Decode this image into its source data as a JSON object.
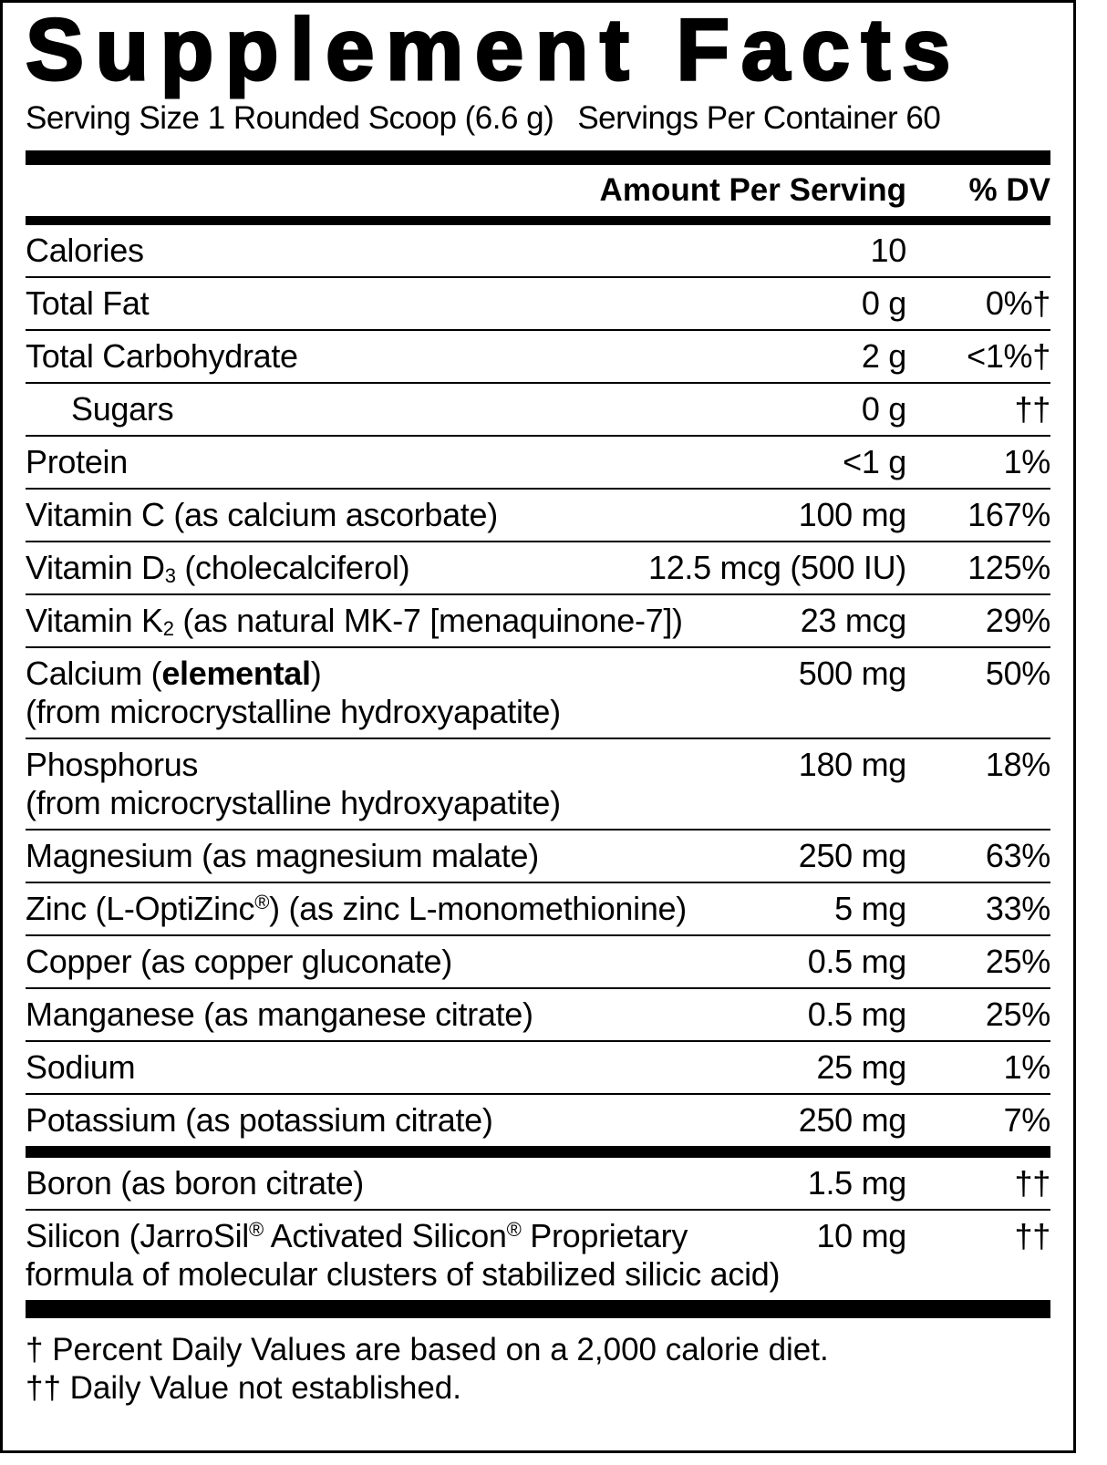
{
  "header": {
    "title": "Supplement Facts",
    "serving_size": "Serving Size 1 Rounded Scoop (6.6 g)",
    "servings_per_container": "Servings Per Container 60"
  },
  "columns": {
    "amount": "Amount Per Serving",
    "dv": "% DV"
  },
  "nutrients": [
    {
      "lines": [
        [
          "Calories"
        ]
      ],
      "amount": "10"
    },
    {
      "lines": [
        [
          "Total Fat"
        ]
      ],
      "amount": "0 g",
      "dv": "0%†"
    },
    {
      "lines": [
        [
          "Total Carbohydrate"
        ]
      ],
      "amount": "2 g",
      "dv": "<1%†"
    },
    {
      "lines": [
        [
          "Sugars"
        ]
      ],
      "amount": "0 g",
      "dv": "††",
      "indent": 1
    },
    {
      "lines": [
        [
          "Protein"
        ]
      ],
      "amount": "<1 g",
      "dv": "1%"
    },
    {
      "lines": [
        [
          "Vitamin C (as calcium ascorbate)"
        ]
      ],
      "amount": "100 mg",
      "dv": "167%"
    },
    {
      "lines": [
        [
          "Vitamin D",
          {
            "sub": "3"
          },
          " (cholecalciferol)"
        ]
      ],
      "amount": "12.5 mcg (500 IU)",
      "dv": "125%"
    },
    {
      "lines": [
        [
          "Vitamin K",
          {
            "sub": "2"
          },
          " (as natural MK-7 [menaquinone-7])"
        ]
      ],
      "amount": "23 mcg",
      "dv": "29%"
    },
    {
      "lines": [
        [
          "Calcium (",
          {
            "b": "elemental"
          },
          ")"
        ],
        [
          "(from microcrystalline hydroxyapatite)"
        ]
      ],
      "amount": "500 mg",
      "dv": "50%"
    },
    {
      "lines": [
        [
          "Phosphorus"
        ],
        [
          "(from microcrystalline hydroxyapatite)"
        ]
      ],
      "amount": "180 mg",
      "dv": "18%"
    },
    {
      "lines": [
        [
          "Magnesium (as magnesium malate)"
        ]
      ],
      "amount": "250 mg",
      "dv": "63%"
    },
    {
      "lines": [
        [
          "Zinc (L-OptiZinc",
          {
            "sup": "®"
          },
          ") (as zinc L-monomethionine)"
        ]
      ],
      "amount": "5 mg",
      "dv": "33%"
    },
    {
      "lines": [
        [
          "Copper (as copper gluconate)"
        ]
      ],
      "amount": "0.5 mg",
      "dv": "25%"
    },
    {
      "lines": [
        [
          "Manganese (as manganese citrate)"
        ]
      ],
      "amount": "0.5 mg",
      "dv": "25%"
    },
    {
      "lines": [
        [
          "Sodium"
        ]
      ],
      "amount": "25 mg",
      "dv": "1%"
    },
    {
      "lines": [
        [
          "Potassium (as potassium citrate)"
        ]
      ],
      "amount": "250 mg",
      "dv": "7%"
    }
  ],
  "other": [
    {
      "lines": [
        [
          "Boron (as boron citrate)"
        ]
      ],
      "amount": "1.5 mg",
      "dv": "††"
    },
    {
      "lines": [
        [
          "Silicon (JarroSil",
          {
            "sup": "®"
          },
          " Activated Silicon",
          {
            "sup": "®"
          },
          " Proprietary"
        ],
        [
          "formula of molecular clusters of stabilized silicic acid)"
        ]
      ],
      "amount": "10 mg",
      "dv": "††"
    }
  ],
  "footnotes": [
    "† Percent Daily Values are based on a 2,000 calorie diet.",
    "†† Daily Value not established."
  ]
}
